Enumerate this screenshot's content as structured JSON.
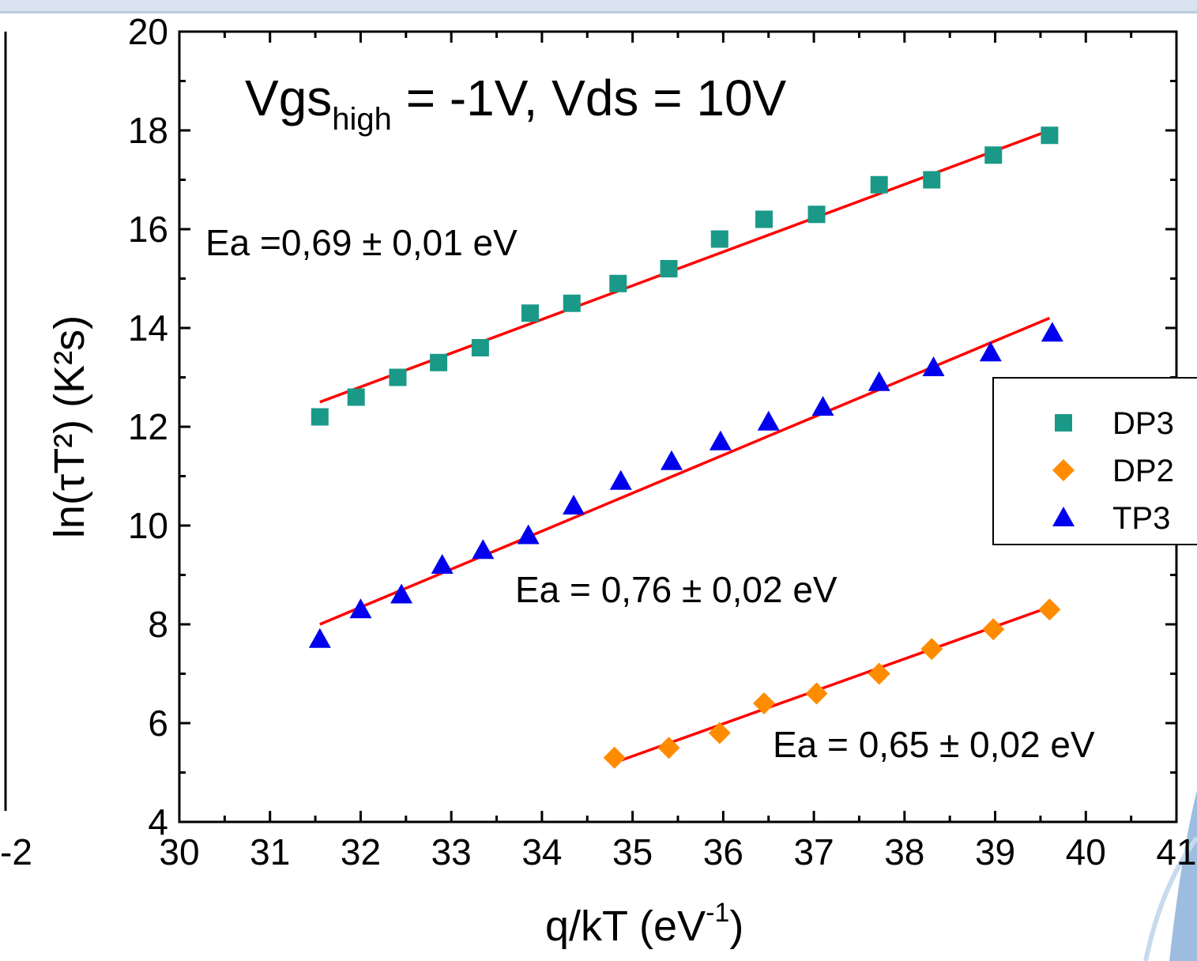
{
  "chart_data": {
    "type": "scatter",
    "title_main": "Vgs",
    "title_sub": "high",
    "title_rest": " = -1V, Vds = 10V",
    "xlabel_main": "q/kT (eV",
    "xlabel_sup": "-1",
    "xlabel_close": ")",
    "ylabel": "ln(τT²) (K²s)",
    "xlim": [
      30,
      41
    ],
    "ylim": [
      4,
      20
    ],
    "xticks": [
      "30",
      "31",
      "32",
      "33",
      "34",
      "35",
      "36",
      "37",
      "38",
      "39",
      "40",
      "41"
    ],
    "yticks": [
      "4",
      "6",
      "8",
      "10",
      "12",
      "14",
      "16",
      "18",
      "20"
    ],
    "clipped_left_label": "-2",
    "grid": false,
    "legend_position": "right",
    "fit_color": "#ff0000",
    "series": [
      {
        "name": "DP3",
        "marker": "square",
        "color": "#1a9988",
        "x": [
          31.55,
          31.95,
          32.41,
          32.86,
          33.32,
          33.87,
          34.33,
          34.84,
          35.4,
          35.96,
          36.45,
          37.03,
          37.72,
          38.3,
          38.98,
          39.6
        ],
        "y": [
          12.2,
          12.6,
          13.0,
          13.3,
          13.6,
          14.3,
          14.5,
          14.9,
          15.2,
          15.8,
          16.2,
          16.3,
          16.9,
          17.0,
          17.5,
          17.9
        ],
        "fit": {
          "x": [
            31.55,
            39.6
          ],
          "y": [
            12.5,
            18.0
          ]
        },
        "annotation": "Ea =0,69 ± 0,01 eV"
      },
      {
        "name": "DP2",
        "marker": "diamond",
        "color": "#ff8c00",
        "x": [
          34.8,
          35.4,
          35.96,
          36.45,
          37.03,
          37.72,
          38.3,
          38.98,
          39.6
        ],
        "y": [
          5.3,
          5.5,
          5.8,
          6.4,
          6.6,
          7.0,
          7.5,
          7.9,
          8.3
        ],
        "fit": {
          "x": [
            34.8,
            39.6
          ],
          "y": [
            5.2,
            8.35
          ]
        },
        "annotation": "Ea = 0,65 ± 0,02 eV"
      },
      {
        "name": "TP3",
        "marker": "triangle",
        "color": "#0000ee",
        "x": [
          31.55,
          32.0,
          32.45,
          32.9,
          33.35,
          33.85,
          34.35,
          34.87,
          35.43,
          35.97,
          36.5,
          37.1,
          37.72,
          38.32,
          38.95,
          39.63
        ],
        "y": [
          7.7,
          8.3,
          8.6,
          9.2,
          9.5,
          9.8,
          10.4,
          10.9,
          11.3,
          11.7,
          12.1,
          12.4,
          12.9,
          13.2,
          13.5,
          13.9
        ],
        "fit": {
          "x": [
            31.55,
            39.6
          ],
          "y": [
            8.0,
            14.2
          ]
        },
        "annotation": "Ea = 0,76 ± 0,02 eV"
      }
    ]
  }
}
